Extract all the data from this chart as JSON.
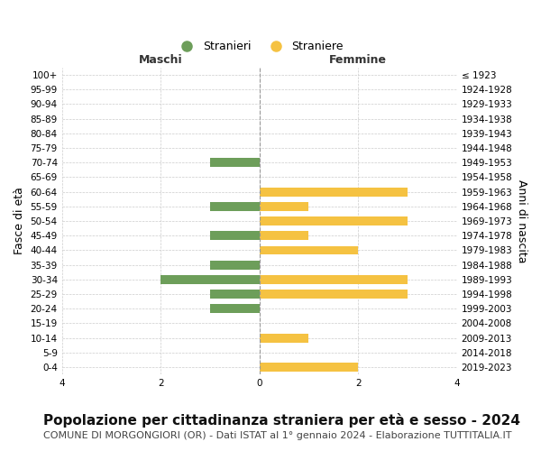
{
  "age_groups": [
    "100+",
    "95-99",
    "90-94",
    "85-89",
    "80-84",
    "75-79",
    "70-74",
    "65-69",
    "60-64",
    "55-59",
    "50-54",
    "45-49",
    "40-44",
    "35-39",
    "30-34",
    "25-29",
    "20-24",
    "15-19",
    "10-14",
    "5-9",
    "0-4"
  ],
  "birth_years": [
    "≤ 1923",
    "1924-1928",
    "1929-1933",
    "1934-1938",
    "1939-1943",
    "1944-1948",
    "1949-1953",
    "1954-1958",
    "1959-1963",
    "1964-1968",
    "1969-1973",
    "1974-1978",
    "1979-1983",
    "1984-1988",
    "1989-1993",
    "1994-1998",
    "1999-2003",
    "2004-2008",
    "2009-2013",
    "2014-2018",
    "2019-2023"
  ],
  "males": [
    0,
    0,
    0,
    0,
    0,
    0,
    1,
    0,
    0,
    1,
    0,
    1,
    0,
    1,
    2,
    1,
    1,
    0,
    0,
    0,
    0
  ],
  "females": [
    0,
    0,
    0,
    0,
    0,
    0,
    0,
    0,
    3,
    1,
    3,
    1,
    2,
    0,
    3,
    3,
    0,
    0,
    1,
    0,
    2
  ],
  "male_color": "#6d9e5a",
  "female_color": "#f5c242",
  "xlim": 4,
  "title": "Popolazione per cittadinanza straniera per età e sesso - 2024",
  "subtitle": "COMUNE DI MORGONGIORI (OR) - Dati ISTAT al 1° gennaio 2024 - Elaborazione TUTTITALIA.IT",
  "ylabel_left": "Fasce di età",
  "ylabel_right": "Anni di nascita",
  "legend_male": "Stranieri",
  "legend_female": "Straniere",
  "header_left": "Maschi",
  "header_right": "Femmine",
  "background_color": "#ffffff",
  "grid_color": "#cccccc",
  "title_fontsize": 11,
  "subtitle_fontsize": 8,
  "axis_label_fontsize": 8,
  "tick_fontsize": 7.5
}
